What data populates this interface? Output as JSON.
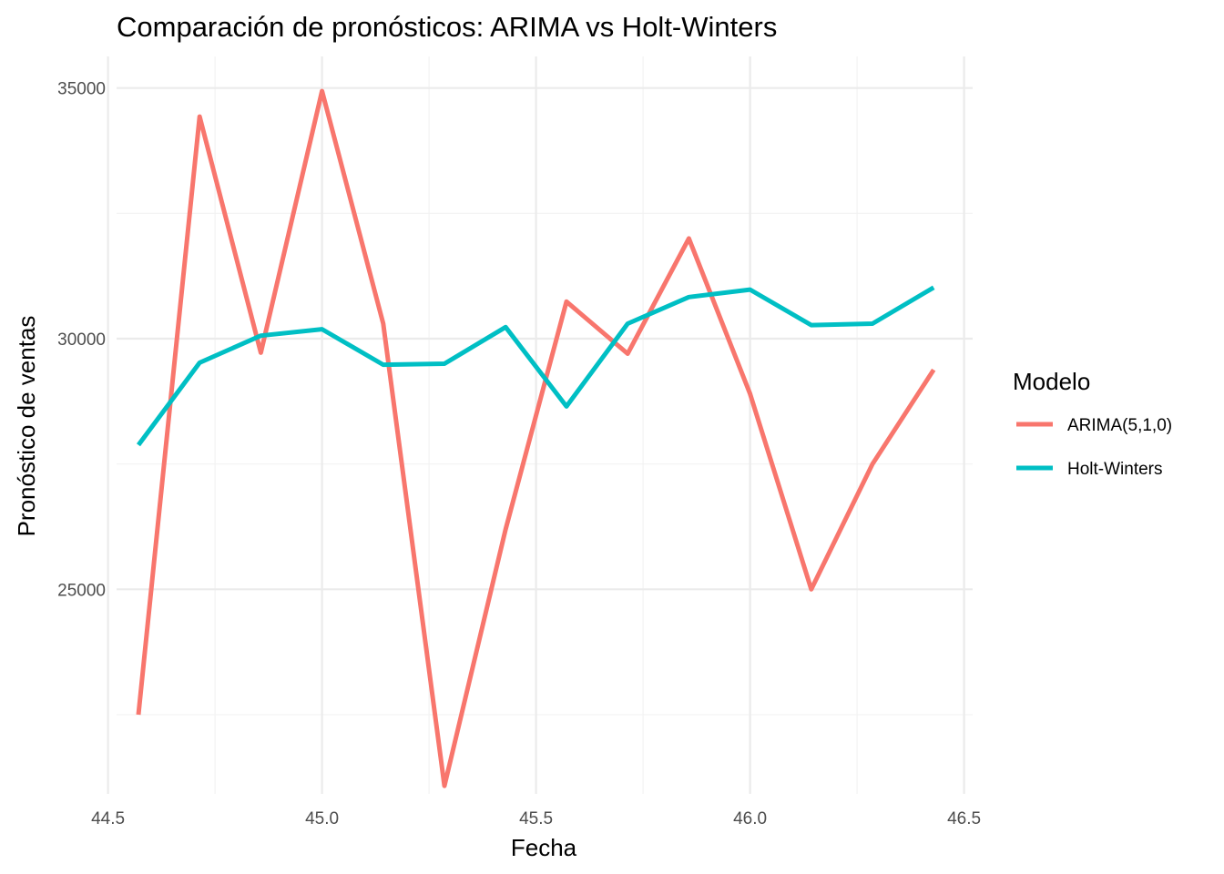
{
  "chart_data": {
    "type": "line",
    "title": "Comparación de pronósticos: ARIMA vs Holt-Winters",
    "xlabel": "Fecha",
    "ylabel": "Pronóstico de ventas",
    "xlim": [
      44.52,
      46.52
    ],
    "ylim": [
      20920,
      35630
    ],
    "x_ticks": [
      44.5,
      45.0,
      45.5,
      46.0,
      46.5
    ],
    "x_tick_labels": [
      "44.5",
      "45.0",
      "45.5",
      "46.0",
      "46.5"
    ],
    "x_minor_ticks": [
      44.75,
      45.25,
      45.75,
      46.25
    ],
    "y_ticks": [
      25000,
      30000,
      35000
    ],
    "y_tick_labels": [
      "25000",
      "30000",
      "35000"
    ],
    "y_minor_ticks": [
      22500,
      27500,
      32500
    ],
    "grid": true,
    "legend": {
      "title": "Modelo",
      "position": "right"
    },
    "series": [
      {
        "name": "ARIMA(5,1,0)",
        "color": "#F8766D",
        "points": [
          [
            44.571,
            22500
          ],
          [
            44.714,
            34430
          ],
          [
            44.857,
            29720
          ],
          [
            45.0,
            34940
          ],
          [
            45.143,
            30300
          ],
          [
            45.286,
            21080
          ],
          [
            45.429,
            26200
          ],
          [
            45.571,
            30740
          ],
          [
            45.714,
            29700
          ],
          [
            45.857,
            32000
          ],
          [
            46.0,
            28900
          ],
          [
            46.143,
            25000
          ],
          [
            46.286,
            27500
          ],
          [
            46.429,
            29380
          ]
        ]
      },
      {
        "name": "Holt-Winters",
        "color": "#00BFC4",
        "points": [
          [
            44.571,
            27880
          ],
          [
            44.714,
            29520
          ],
          [
            44.857,
            30060
          ],
          [
            45.0,
            30190
          ],
          [
            45.143,
            29480
          ],
          [
            45.286,
            29500
          ],
          [
            45.429,
            30230
          ],
          [
            45.571,
            28650
          ],
          [
            45.714,
            30300
          ],
          [
            45.857,
            30830
          ],
          [
            46.0,
            30980
          ],
          [
            46.143,
            30270
          ],
          [
            46.286,
            30300
          ],
          [
            46.429,
            31020
          ]
        ]
      }
    ]
  }
}
